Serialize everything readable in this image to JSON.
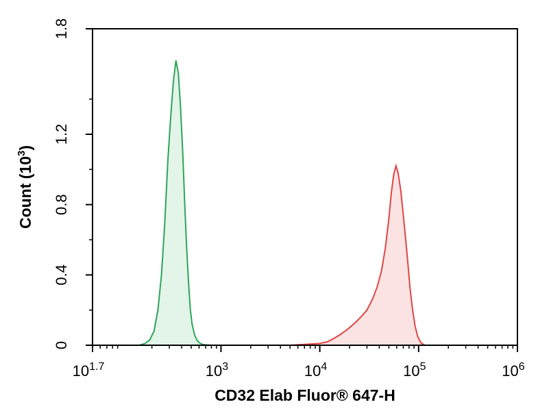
{
  "chart_data": {
    "type": "area",
    "xlabel": "CD32 Elab Fluor® 647-H",
    "ylabel": "Count (10",
    "ylabel_exp": "3",
    "ylabel_close": ")",
    "x_scale": "log",
    "xlim": [
      50.12,
      1000000
    ],
    "ylim": [
      0,
      1.8
    ],
    "x_ticks": [
      {
        "base": "10",
        "exp": "1.7",
        "value": 50.12
      },
      {
        "base": "10",
        "exp": "3",
        "value": 1000
      },
      {
        "base": "10",
        "exp": "4",
        "value": 10000
      },
      {
        "base": "10",
        "exp": "5",
        "value": 100000
      },
      {
        "base": "10",
        "exp": "6",
        "value": 1000000
      }
    ],
    "y_ticks": [
      {
        "label": "0",
        "value": 0
      },
      {
        "label": "0.4",
        "value": 0.4
      },
      {
        "label": "0.8",
        "value": 0.8
      },
      {
        "label": "1.2",
        "value": 1.2
      },
      {
        "label": "1.8",
        "value": 1.8
      }
    ],
    "grid": false,
    "series": [
      {
        "color": "#2ca55a",
        "fill": "#e3f4e8",
        "x": [
          150,
          170,
          190,
          210,
          230,
          250,
          270,
          290,
          310,
          330,
          350,
          370,
          390,
          410,
          430,
          450,
          470,
          490,
          510,
          540,
          570,
          600,
          650,
          700,
          750,
          800
        ],
        "y": [
          0,
          0.01,
          0.03,
          0.08,
          0.2,
          0.4,
          0.7,
          1.05,
          1.3,
          1.5,
          1.62,
          1.55,
          1.35,
          1.1,
          0.8,
          0.55,
          0.35,
          0.2,
          0.12,
          0.06,
          0.03,
          0.015,
          0.005,
          0.002,
          0.001,
          0
        ]
      },
      {
        "color": "#e04545",
        "fill": "#fbe3e3",
        "x": [
          5000,
          7000,
          10000,
          12000,
          14000,
          16000,
          18000,
          20000,
          23000,
          26000,
          30000,
          34000,
          38000,
          42000,
          46000,
          50000,
          53000,
          56000,
          59000,
          62000,
          66000,
          70000,
          74000,
          78000,
          82000,
          87000,
          92000,
          98000,
          105000,
          115000
        ],
        "y": [
          0,
          0.005,
          0.01,
          0.02,
          0.04,
          0.06,
          0.08,
          0.1,
          0.13,
          0.16,
          0.2,
          0.26,
          0.33,
          0.42,
          0.55,
          0.72,
          0.87,
          0.97,
          1.02,
          0.98,
          0.88,
          0.74,
          0.6,
          0.46,
          0.32,
          0.2,
          0.11,
          0.05,
          0.015,
          0
        ]
      }
    ]
  }
}
